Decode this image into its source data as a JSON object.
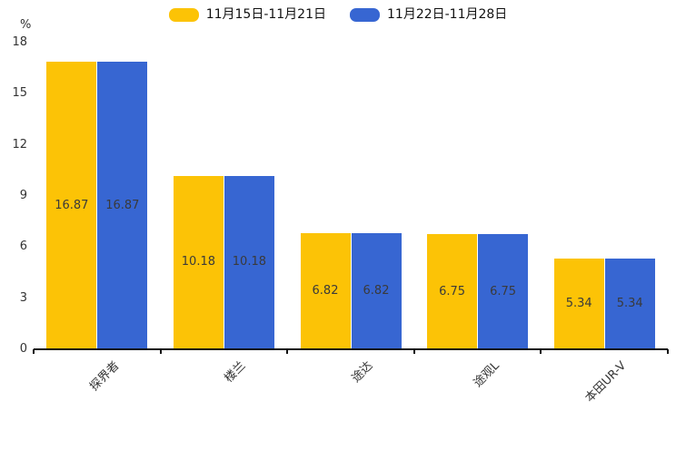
{
  "chart_data": {
    "type": "bar",
    "title": "",
    "xlabel": "",
    "ylabel": "%",
    "categories": [
      "探界者",
      "楼兰",
      "途达",
      "途观L",
      "本田UR-V"
    ],
    "series": [
      {
        "name": "11月15日-11月21日",
        "color": "#FCC306",
        "values": [
          16.87,
          10.18,
          6.82,
          6.75,
          5.34
        ]
      },
      {
        "name": "11月22日-11月28日",
        "color": "#3766D2",
        "values": [
          16.87,
          10.18,
          6.82,
          6.75,
          5.34
        ]
      }
    ],
    "ylim": [
      0,
      18
    ],
    "yticks": [
      0,
      3,
      6,
      9,
      12,
      15,
      18
    ],
    "grid": false,
    "legend_position": "top",
    "value_labels": "inside-center",
    "value_label_format": "2-decimals"
  },
  "colors": {
    "background": "#ffffff",
    "axis": "#111111",
    "tick_text": "#333333",
    "value_label_text": "#3a3a3a"
  }
}
